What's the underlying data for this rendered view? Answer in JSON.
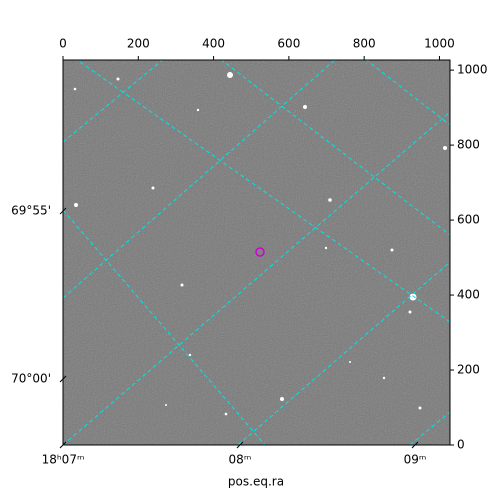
{
  "chart_data": {
    "type": "image",
    "xlabel": "pos.eq.ra",
    "xlim": [
      0,
      1028
    ],
    "ylim": [
      0,
      1027
    ],
    "xticks": [
      0,
      200,
      400,
      600,
      800,
      1000
    ],
    "yticks": [
      0,
      200,
      400,
      600,
      800,
      1000
    ],
    "ra_ticks": [
      {
        "value": 0,
        "label": "18ʰ07ᵐ"
      },
      {
        "value": 470,
        "label": "08ᵐ"
      },
      {
        "value": 935,
        "label": "09ᵐ"
      }
    ],
    "dec_ticks": [
      {
        "value": 624,
        "label": "69°55'"
      },
      {
        "value": 176,
        "label": "70°00'"
      }
    ],
    "grid_color": "#00e5e5"
  }
}
